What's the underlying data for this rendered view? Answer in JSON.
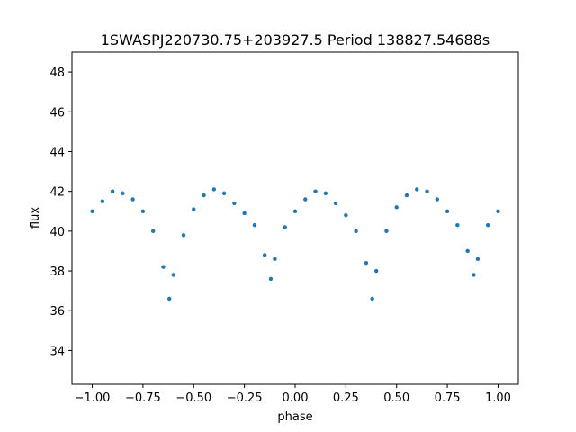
{
  "chart_data": {
    "type": "scatter",
    "title": "1SWASPJ220730.75+203927.5 Period 138827.54688s",
    "xlabel": "phase",
    "ylabel": "flux",
    "xlim": [
      -1.1,
      1.1
    ],
    "ylim": [
      32.3,
      49.0
    ],
    "xticks": [
      -1.0,
      -0.75,
      -0.5,
      -0.25,
      0.0,
      0.25,
      0.5,
      0.75,
      1.0
    ],
    "xtick_labels": [
      "−1.00",
      "−0.75",
      "−0.50",
      "−0.25",
      "0.00",
      "0.25",
      "0.50",
      "0.75",
      "1.00"
    ],
    "yticks": [
      34,
      36,
      38,
      40,
      42,
      44,
      46,
      48
    ],
    "ytick_labels": [
      "34",
      "36",
      "38",
      "40",
      "42",
      "44",
      "46",
      "48"
    ],
    "grid": false,
    "marker_color": "#1f77b4",
    "series": [
      {
        "x": [
          -1.0,
          -0.95,
          -0.9,
          -0.85,
          -0.8,
          -0.75,
          -0.7,
          -0.65,
          -0.62,
          -0.6,
          -0.55,
          -0.5,
          -0.45,
          -0.4,
          -0.35,
          -0.3,
          -0.25,
          -0.2,
          -0.15,
          -0.12,
          -0.1,
          -0.05,
          0.0,
          0.05,
          0.1,
          0.15,
          0.2,
          0.25,
          0.3,
          0.35,
          0.38,
          0.4,
          0.45,
          0.5,
          0.55,
          0.6,
          0.65,
          0.7,
          0.75,
          0.8,
          0.85,
          0.88,
          0.9,
          0.95,
          1.0
        ],
        "y": [
          41.0,
          41.5,
          42.0,
          41.9,
          41.6,
          41.0,
          40.0,
          38.2,
          36.6,
          37.8,
          39.8,
          41.1,
          41.8,
          42.1,
          41.9,
          41.4,
          40.9,
          40.3,
          38.8,
          37.6,
          38.6,
          40.2,
          41.0,
          41.6,
          42.0,
          41.9,
          41.4,
          40.8,
          40.0,
          38.4,
          36.6,
          38.0,
          40.0,
          41.2,
          41.8,
          42.1,
          42.0,
          41.6,
          41.0,
          40.3,
          39.0,
          37.8,
          38.6,
          40.3,
          41.0
        ]
      }
    ]
  }
}
